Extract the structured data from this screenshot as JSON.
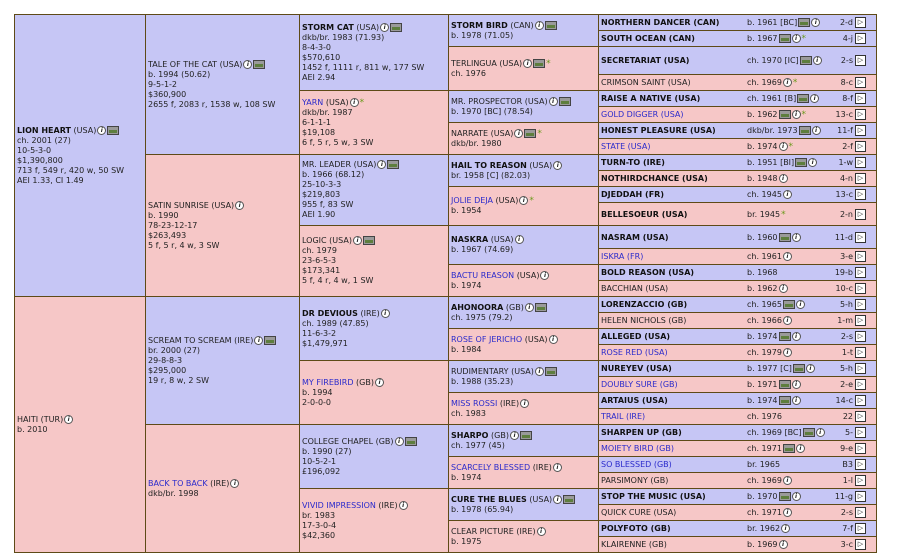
{
  "gen1": [
    {
      "name": "LION HEART",
      "country": "(USA)",
      "lines": [
        "ch. 2001 (27)",
        "10-5-3-0",
        "$1,390,800",
        "713 f, 549 r, 420 w, 50 SW",
        "AEI 1.33, CI 1.49"
      ]
    },
    {
      "name": "HAITI",
      "country": "(TUR)",
      "lines": [
        "b. 2010"
      ]
    }
  ],
  "gen2": [
    {
      "name": "TALE OF THE CAT",
      "country": "(USA)",
      "lines": [
        "b. 1994 (50.62)",
        "9-5-1-2",
        "$360,900",
        "2655 f, 2083 r, 1538 w, 108 SW"
      ]
    },
    {
      "name": "SATIN SUNRISE",
      "country": "(USA)",
      "lines": [
        "b. 1990",
        "78-23-12-17",
        "$263,493",
        "5 f, 5 r, 4 w, 3 SW"
      ]
    },
    {
      "name": "SCREAM TO SCREAM",
      "country": "(IRE)",
      "lines": [
        "br. 2000 (27)",
        "29-8-8-3",
        "$295,000",
        "19 r, 8 w, 2 SW"
      ]
    },
    {
      "name": "BACK TO BACK",
      "country": "(IRE)",
      "lines": [
        "dkb/br. 1998"
      ]
    }
  ],
  "gen3": [
    {
      "name": "STORM CAT",
      "country": "(USA)",
      "lines": [
        "dkb/br. 1983 (71.93)",
        "8-4-3-0",
        "$570,610",
        "1452 f, 1111 r, 811 w, 177 SW",
        "AEI 2.94"
      ]
    },
    {
      "name": "YARN",
      "country": "(USA)",
      "lines": [
        "dkb/br. 1987",
        "6-1-1-1",
        "$19,108",
        "6 f, 5 r, 5 w, 3 SW"
      ]
    },
    {
      "name": "MR. LEADER",
      "country": "(USA)",
      "lines": [
        "b. 1966 (68.12)",
        "25-10-3-3",
        "$219,803",
        "955 f, 83 SW",
        "AEI 1.90"
      ]
    },
    {
      "name": "LOGIC",
      "country": "(USA)",
      "lines": [
        "ch. 1979",
        "23-6-5-3",
        "$173,341",
        "5 f, 4 r, 4 w, 1 SW"
      ]
    },
    {
      "name": "DR DEVIOUS",
      "country": "(IRE)",
      "lines": [
        "ch. 1989 (47.85)",
        "11-6-3-2",
        "$1,479,971"
      ]
    },
    {
      "name": "MY FIREBIRD",
      "country": "(GB)",
      "lines": [
        "b. 1994",
        "2-0-0-0"
      ]
    },
    {
      "name": "COLLEGE CHAPEL",
      "country": "(GB)",
      "lines": [
        "b. 1990 (27)",
        "10-5-2-1",
        "£196,092"
      ]
    },
    {
      "name": "VIVID IMPRESSION",
      "country": "(IRE)",
      "lines": [
        "br. 1983",
        "17-3-0-4",
        "$42,360"
      ]
    }
  ],
  "gen4": [
    {
      "name": "STORM BIRD",
      "country": "(CAN)",
      "lines": [
        "b. 1978 (71.05)"
      ]
    },
    {
      "name": "TERLINGUA",
      "country": "(USA)",
      "lines": [
        "ch. 1976"
      ]
    },
    {
      "name": "MR. PROSPECTOR",
      "country": "(USA)",
      "lines": [
        "b. 1970 [BC] (78.54)"
      ]
    },
    {
      "name": "NARRATE",
      "country": "(USA)",
      "lines": [
        "dkb/br. 1980"
      ]
    },
    {
      "name": "HAIL TO REASON",
      "country": "(USA)",
      "lines": [
        "br. 1958 [C] (82.03)"
      ]
    },
    {
      "name": "JOLIE DEJA",
      "country": "(USA)",
      "lines": [
        "b. 1954"
      ]
    },
    {
      "name": "NASKRA",
      "country": "(USA)",
      "lines": [
        "b. 1967 (74.69)"
      ]
    },
    {
      "name": "BACTU REASON",
      "country": "(USA)",
      "lines": [
        "b. 1974"
      ]
    },
    {
      "name": "AHONOORA",
      "country": "(GB)",
      "lines": [
        "ch. 1975 (79.2)"
      ]
    },
    {
      "name": "ROSE OF JERICHO",
      "country": "(USA)",
      "lines": [
        "b. 1984"
      ]
    },
    {
      "name": "RUDIMENTARY",
      "country": "(USA)",
      "lines": [
        "b. 1988 (35.23)"
      ]
    },
    {
      "name": "MISS ROSSI",
      "country": "(IRE)",
      "lines": [
        "ch. 1983"
      ]
    },
    {
      "name": "SHARPO",
      "country": "(GB)",
      "lines": [
        "ch. 1977 (45)"
      ]
    },
    {
      "name": "SCARCELY BLESSED",
      "country": "(IRE)",
      "lines": [
        "b. 1974"
      ]
    },
    {
      "name": "CURE THE BLUES",
      "country": "(USA)",
      "lines": [
        "b. 1978 (65.94)"
      ]
    },
    {
      "name": "CLEAR PICTURE",
      "country": "(IRE)",
      "lines": [
        "b. 1975"
      ]
    }
  ],
  "gen5": [
    {
      "name": "NORTHERN DANCER (CAN)",
      "info": "b. 1961 [BC]",
      "ref": "2-d"
    },
    {
      "name": "SOUTH OCEAN (CAN)",
      "info": "b. 1967",
      "ref": "4-j"
    },
    {
      "name": "SECRETARIAT (USA)",
      "info": "ch. 1970 [IC]",
      "ref": "2-s"
    },
    {
      "name": "CRIMSON SAINT (USA)",
      "info": "ch. 1969",
      "ref": "8-c"
    },
    {
      "name": "RAISE A NATIVE (USA)",
      "info": "ch. 1961 [B]",
      "ref": "8-f"
    },
    {
      "name": "GOLD DIGGER (USA)",
      "info": "b. 1962",
      "ref": "13-c"
    },
    {
      "name": "HONEST PLEASURE (USA)",
      "info": "dkb/br. 1973",
      "ref": "11-f"
    },
    {
      "name": "STATE (USA)",
      "info": "b. 1974",
      "ref": "2-f"
    },
    {
      "name": "TURN-TO (IRE)",
      "info": "b. 1951 [BI]",
      "ref": "1-w"
    },
    {
      "name": "NOTHIRDCHANCE (USA)",
      "info": "b. 1948",
      "ref": "4-n"
    },
    {
      "name": "DJEDDAH (FR)",
      "info": "ch. 1945",
      "ref": "13-c"
    },
    {
      "name": "BELLESOEUR (USA)",
      "info": "br. 1945",
      "ref": "2-n"
    },
    {
      "name": "NASRAM (USA)",
      "info": "b. 1960",
      "ref": "11-d"
    },
    {
      "name": "ISKRA (FR)",
      "info": "ch. 1961",
      "ref": "3-e"
    },
    {
      "name": "BOLD REASON (USA)",
      "info": "b. 1968",
      "ref": "19-b"
    },
    {
      "name": "BACCHIAN (USA)",
      "info": "b. 1962",
      "ref": "10-c"
    },
    {
      "name": "LORENZACCIO (GB)",
      "info": "ch. 1965",
      "ref": "5-h"
    },
    {
      "name": "HELEN NICHOLS (GB)",
      "info": "ch. 1966",
      "ref": "1-m"
    },
    {
      "name": "ALLEGED (USA)",
      "info": "b. 1974",
      "ref": "2-s"
    },
    {
      "name": "ROSE RED (USA)",
      "info": "ch. 1979",
      "ref": "1-t"
    },
    {
      "name": "NUREYEV (USA)",
      "info": "b. 1977 [C]",
      "ref": "5-h"
    },
    {
      "name": "DOUBLY SURE (GB)",
      "info": "b. 1971",
      "ref": "2-e"
    },
    {
      "name": "ARTAIUS (USA)",
      "info": "b. 1974",
      "ref": "14-c"
    },
    {
      "name": "TRAIL (IRE)",
      "info": "ch. 1976",
      "ref": "22"
    },
    {
      "name": "SHARPEN UP (GB)",
      "info": "ch. 1969 [BC]",
      "ref": "5-"
    },
    {
      "name": "MOIETY BIRD (GB)",
      "info": "ch. 1971",
      "ref": "9-e"
    },
    {
      "name": "SO BLESSED (GB)",
      "info": "br. 1965",
      "ref": "B3"
    },
    {
      "name": "PARSIMONY (GB)",
      "info": "ch. 1969",
      "ref": "1-l"
    },
    {
      "name": "STOP THE MUSIC (USA)",
      "info": "b. 1970",
      "ref": "11-g"
    },
    {
      "name": "QUICK CURE (USA)",
      "info": "ch. 1971",
      "ref": "2-s"
    },
    {
      "name": "POLYFOTO (GB)",
      "info": "br. 1962",
      "ref": "7-f"
    },
    {
      "name": "KLAIRENNE (GB)",
      "info": "b. 1969",
      "ref": "3-c"
    }
  ]
}
